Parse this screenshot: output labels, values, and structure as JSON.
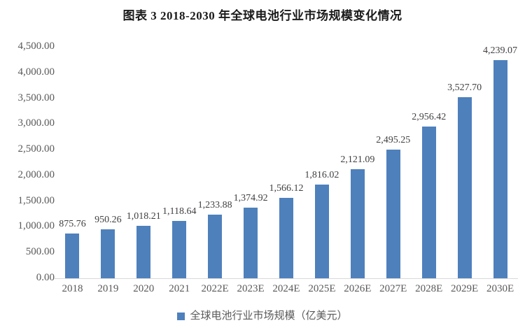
{
  "colors": {
    "bar": "#4e80bc",
    "axis_line": "#d8d8d8",
    "tick_text": "#595959",
    "data_label_text": "#404040",
    "title_text": "#1a1a1a"
  },
  "chart_data": {
    "type": "bar",
    "title": "图表 3 2018-2030 年全球电池行业市场规模变化情况",
    "categories": [
      "2018",
      "2019",
      "2020",
      "2021",
      "2022E",
      "2023E",
      "2024E",
      "2025E",
      "2026E",
      "2027E",
      "2028E",
      "2029E",
      "2030E"
    ],
    "values": [
      875.76,
      950.26,
      1018.21,
      1118.64,
      1233.88,
      1374.92,
      1566.12,
      1816.02,
      2121.09,
      2495.25,
      2956.42,
      3527.7,
      4239.07
    ],
    "data_labels": [
      "875.76",
      "950.26",
      "1,018.21",
      "1,118.64",
      "1,233.88",
      "1,374.92",
      "1,566.12",
      "1,816.02",
      "2,121.09",
      "2,495.25",
      "2,956.42",
      "3,527.70",
      "4,239.07"
    ],
    "y_tick_values": [
      0,
      500,
      1000,
      1500,
      2000,
      2500,
      3000,
      3500,
      4000,
      4500
    ],
    "y_tick_labels": [
      "0.00",
      "500.00",
      "1,000.00",
      "1,500.00",
      "2,000.00",
      "2,500.00",
      "3,000.00",
      "3,500.00",
      "4,000.00",
      "4,500.00"
    ],
    "ylim": [
      0,
      4500
    ],
    "xlabel": "",
    "ylabel": "",
    "grid": false,
    "legend": [
      "全球电池行业市场规模（亿美元）"
    ],
    "legend_position": "bottom"
  }
}
